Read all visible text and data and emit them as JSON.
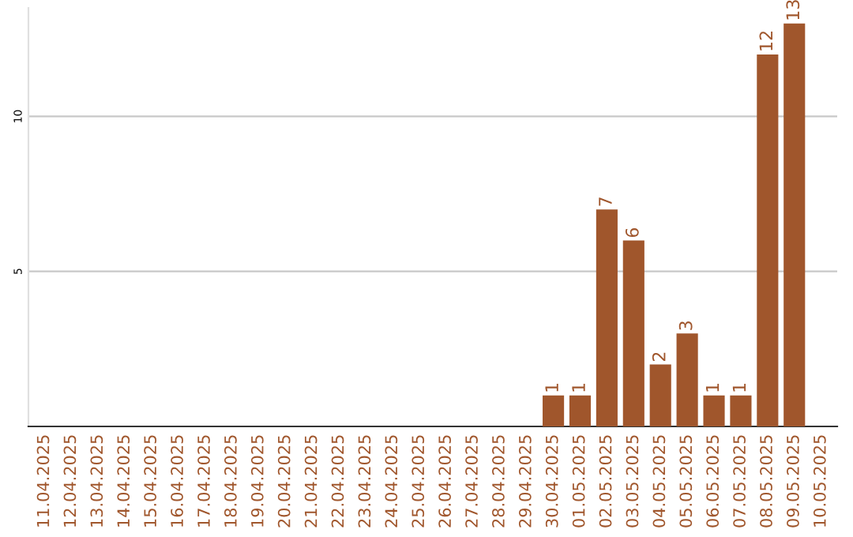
{
  "chart_data": {
    "type": "bar",
    "categories": [
      "11.04.2025",
      "12.04.2025",
      "13.04.2025",
      "14.04.2025",
      "15.04.2025",
      "16.04.2025",
      "17.04.2025",
      "18.04.2025",
      "19.04.2025",
      "20.04.2025",
      "21.04.2025",
      "22.04.2025",
      "23.04.2025",
      "24.04.2025",
      "25.04.2025",
      "26.04.2025",
      "27.04.2025",
      "28.04.2025",
      "29.04.2025",
      "30.04.2025",
      "01.05.2025",
      "02.05.2025",
      "03.05.2025",
      "04.05.2025",
      "05.05.2025",
      "06.05.2025",
      "07.05.2025",
      "08.05.2025",
      "09.05.2025",
      "10.05.2025"
    ],
    "values": [
      0,
      0,
      0,
      0,
      0,
      0,
      0,
      0,
      0,
      0,
      0,
      0,
      0,
      0,
      0,
      0,
      0,
      0,
      0,
      1,
      1,
      7,
      6,
      2,
      3,
      1,
      1,
      12,
      13,
      0
    ],
    "value_labels": [
      null,
      null,
      null,
      null,
      null,
      null,
      null,
      null,
      null,
      null,
      null,
      null,
      null,
      null,
      null,
      null,
      null,
      null,
      null,
      "1",
      "1",
      "7",
      "6",
      "2",
      "3",
      "1",
      "1",
      "12",
      "13",
      null
    ],
    "color": "#a0562c",
    "ylim": [
      0,
      13.5
    ],
    "yticks": [
      5,
      10
    ],
    "grid": "y",
    "legend": false
  }
}
